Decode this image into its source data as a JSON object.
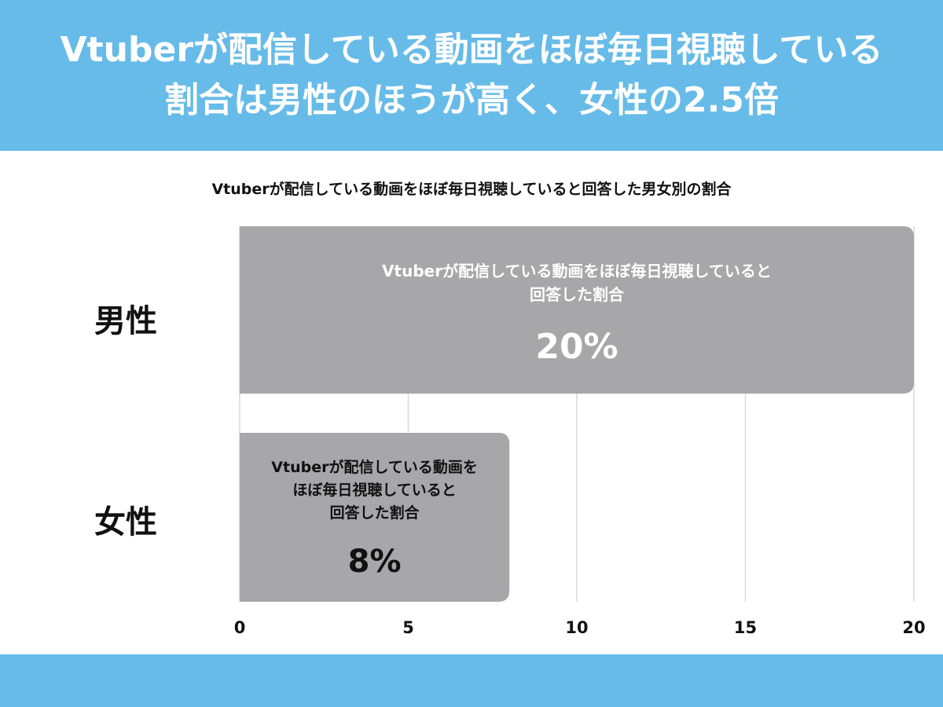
{
  "header": {
    "title_line1": "Vtuberが配信している動画をほぼ毎日視聴している",
    "title_line2": "割合は男性のほうが高く、女性の2.5倍"
  },
  "colors": {
    "banner": "#67bbe8",
    "bar": "#a7a6a8",
    "grid": "#d9d9d9",
    "text": "#111111"
  },
  "chart_data": {
    "type": "bar",
    "orientation": "horizontal",
    "title": "Vtuberが配信している動画をほぼ毎日視聴していると回答した男女別の割合",
    "categories": [
      "男性",
      "女性"
    ],
    "values": [
      20,
      8
    ],
    "xlim": [
      0,
      20
    ],
    "xticks": [
      "0",
      "5",
      "10",
      "15",
      "20"
    ],
    "grid": true,
    "bar_labels": [
      {
        "lines": [
          "Vtuberが配信している動画をほぼ毎日視聴していると",
          "回答した割合"
        ],
        "value": "20%"
      },
      {
        "lines": [
          "Vtuberが配信している動画を",
          "ほぼ毎日視聴していると",
          "回答した割合"
        ],
        "value": "8%"
      }
    ]
  }
}
